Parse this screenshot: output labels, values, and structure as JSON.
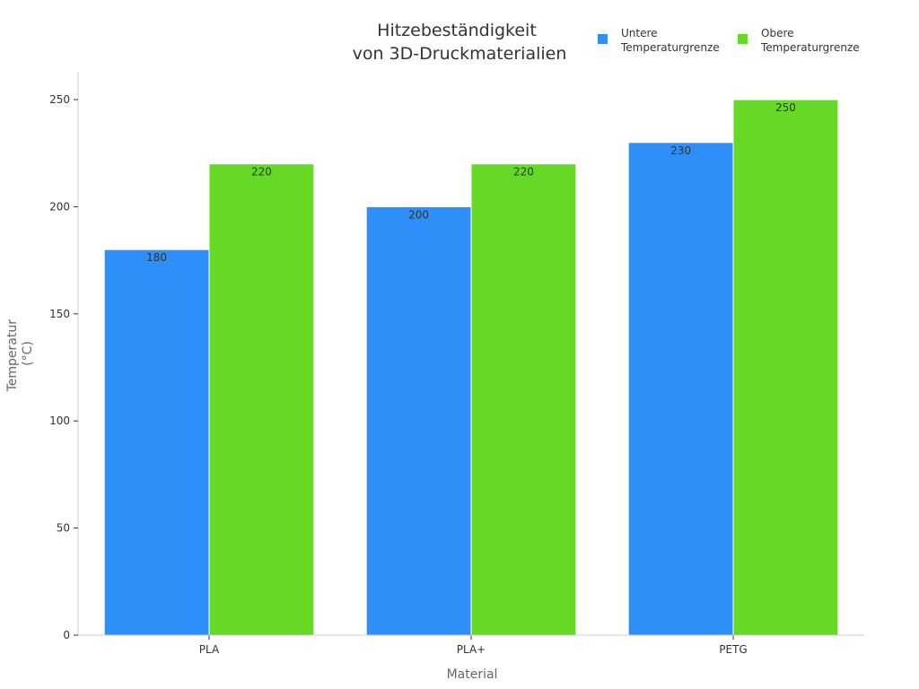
{
  "chart_data": {
    "type": "bar",
    "title_lines": [
      "Hitzebeständigkeit",
      "von 3D-Druckmaterialien"
    ],
    "xlabel": "Material",
    "ylabel_lines": [
      "Temperatur",
      "(°C)"
    ],
    "categories": [
      "PLA",
      "PLA+",
      "PETG"
    ],
    "series": [
      {
        "name_lines": [
          "Untere",
          "Temperaturgrenze"
        ],
        "color": "#2F8FF8",
        "values": [
          180,
          200,
          230
        ]
      },
      {
        "name_lines": [
          "Obere",
          "Temperaturgrenze"
        ],
        "color": "#66D926",
        "values": [
          220,
          220,
          250
        ]
      }
    ],
    "ylim": [
      0,
      263
    ],
    "yticks": [
      0,
      50,
      100,
      150,
      200,
      250
    ],
    "grid": false,
    "legend": "top-right"
  }
}
